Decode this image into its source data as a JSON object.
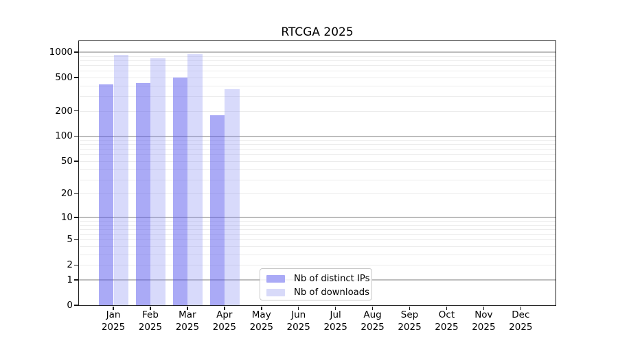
{
  "title": "RTCGA 2025",
  "colors": {
    "distinct_ips_bar": "rgba(85,85,238,0.5)",
    "distinct_ips_flat": "#aaaaf6",
    "downloads_bar": "rgba(133,140,243,0.32)",
    "downloads_flat": "#d8daf9",
    "major_grid": "#bdbdbd",
    "minor_grid": "#ececec",
    "axis": "#1a1a1a"
  },
  "legend": {
    "items": [
      {
        "label": "Nb of distinct IPs"
      },
      {
        "label": "Nb of downloads"
      }
    ]
  },
  "chart_data": {
    "type": "bar",
    "title": "RTCGA 2025",
    "xlabel": "",
    "ylabel": "",
    "categories": [
      "Jan 2025",
      "Feb 2025",
      "Mar 2025",
      "Apr 2025",
      "May 2025",
      "Jun 2025",
      "Jul 2025",
      "Aug 2025",
      "Sep 2025",
      "Oct 2025",
      "Nov 2025",
      "Dec 2025"
    ],
    "x_tick_months": [
      "Jan",
      "Feb",
      "Mar",
      "Apr",
      "May",
      "Jun",
      "Jul",
      "Aug",
      "Sep",
      "Oct",
      "Nov",
      "Dec"
    ],
    "x_tick_year": "2025",
    "series": [
      {
        "name": "Nb of distinct IPs",
        "key": "distinct-ips",
        "values": [
          420,
          435,
          505,
          180,
          null,
          null,
          null,
          null,
          null,
          null,
          null,
          null
        ]
      },
      {
        "name": "Nb of downloads",
        "key": "downloads",
        "values": [
          930,
          855,
          960,
          365,
          null,
          null,
          null,
          null,
          null,
          null,
          null,
          null
        ]
      }
    ],
    "yscale": "log1p",
    "ylim": [
      0,
      1360
    ],
    "y_ticks": [
      {
        "value": 1000,
        "label": "1000"
      },
      {
        "value": 500,
        "label": "500"
      },
      {
        "value": 200,
        "label": "200"
      },
      {
        "value": 100,
        "label": "100"
      },
      {
        "value": 50,
        "label": "50"
      },
      {
        "value": 20,
        "label": "20"
      },
      {
        "value": 10,
        "label": "10"
      },
      {
        "value": 5,
        "label": "5"
      },
      {
        "value": 2,
        "label": "2"
      },
      {
        "value": 1,
        "label": "1"
      },
      {
        "value": 0,
        "label": "0"
      }
    ],
    "grid": {
      "major_values": [
        1,
        10,
        100,
        1000
      ],
      "minor_values": [
        2,
        3,
        4,
        5,
        6,
        7,
        8,
        9,
        20,
        30,
        40,
        50,
        60,
        70,
        80,
        90,
        200,
        300,
        400,
        500,
        600,
        700,
        800,
        900
      ]
    },
    "legend_position": "inside lower-center"
  }
}
